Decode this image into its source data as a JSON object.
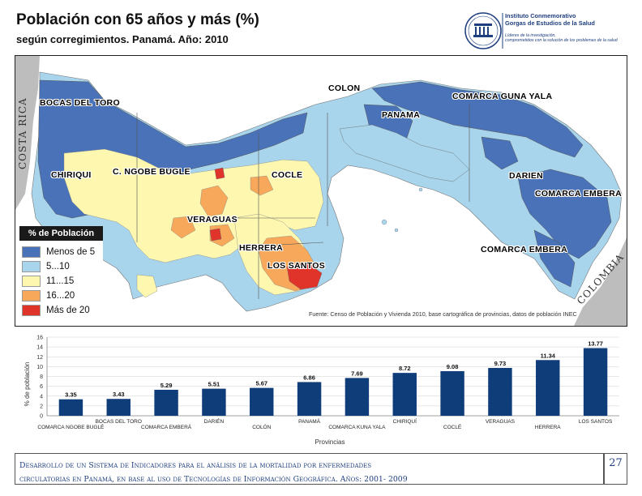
{
  "title": "Población con 65 años y más (%)",
  "subtitle": "según corregimientos. Panamá. Año: 2010",
  "logo": {
    "line1": "Instituto Conmemorativo",
    "line2": "Gorgas de Estudios de la Salud",
    "line3": "Líderes de la investigación,",
    "line4": "comprometidos con la solución de los problemas de la salud",
    "emblem_text": "ICGES"
  },
  "map": {
    "country_labels": {
      "costa_rica": "COSTA RICA",
      "colombia": "COLOMBIA"
    },
    "region_labels": [
      "BOCAS DEL TORO",
      "COLON",
      "COMARCA GUNA YALA",
      "PANAMA",
      "CHIRIQUI",
      "C. NGOBE BUGLE",
      "COCLE",
      "DARIEN",
      "COMARCA EMBERA",
      "VERAGUAS",
      "HERRERA",
      "LOS SANTOS",
      "COMARCA EMBERA"
    ],
    "legend": {
      "title": "% de Población",
      "items": [
        {
          "label": "Menos de 5",
          "color": "#4a72b8"
        },
        {
          "label": "5...10",
          "color": "#a8d4ec"
        },
        {
          "label": "11...15",
          "color": "#fdf7b0"
        },
        {
          "label": "16...20",
          "color": "#f7a85a"
        },
        {
          "label": "Más de 20",
          "color": "#e0342a"
        }
      ]
    },
    "source": "Fuente: Censo de Población y Vivienda 2010, base cartográfica de provincias, datos de población INEC"
  },
  "chart_data": {
    "type": "bar",
    "categories": [
      "COMARCA NGOBE BUGLÉ",
      "BOCAS DEL TORO",
      "COMARCA EMBERÁ",
      "DARIÉN",
      "COLÓN",
      "PANAMÁ",
      "COMARCA KUNA YALA",
      "CHIRIQUÍ",
      "COCLÉ",
      "VERAGUAS",
      "HERRERA",
      "LOS SANTOS"
    ],
    "values": [
      3.35,
      3.43,
      5.29,
      5.51,
      5.67,
      6.86,
      7.69,
      8.72,
      9.08,
      9.73,
      11.34,
      13.77
    ],
    "value_labels": [
      "3.35",
      "3.43",
      "5.29",
      "5.51",
      "5.67",
      "6.86",
      "7.69",
      "8.72",
      "9.08",
      "9.73",
      "11.34",
      "13.77"
    ],
    "xlabel": "Provincias",
    "ylabel": "% de población",
    "ylim": [
      0,
      16
    ],
    "yticks": [
      0,
      2,
      4,
      6,
      8,
      10,
      12,
      14,
      16
    ],
    "ytick_labels": [
      "0",
      "2",
      "4",
      "6",
      "8",
      "10",
      "12",
      "14",
      "16"
    ],
    "bar_color": "#0f3d7a",
    "grid": true
  },
  "footer": {
    "line1": "Desarrollo de un Sistema de Indicadores para el análisis de la mortalidad por enfermedades",
    "line2": "circulatorias en Panamá, en base al uso de Tecnologías de Información Geográfica. Años: 2001- 2009",
    "page_number": "27"
  }
}
